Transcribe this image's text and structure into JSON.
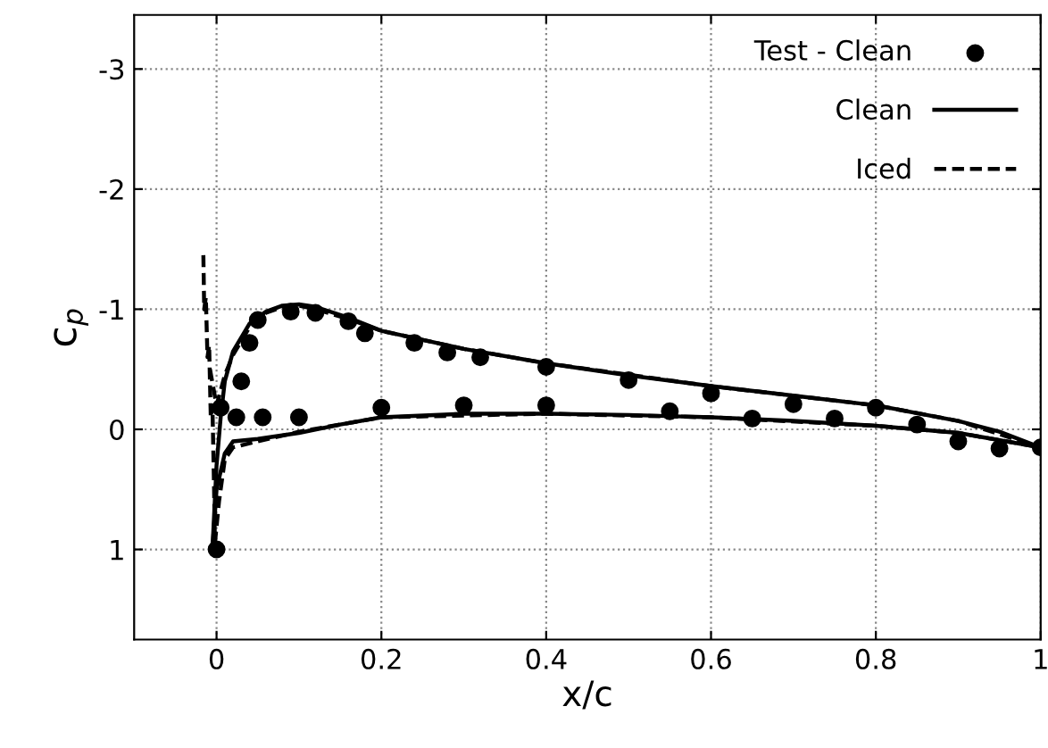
{
  "chart_data": {
    "type": "line",
    "xlabel": "x/c",
    "ylabel": "c$_{p}$",
    "xlim": [
      -0.1,
      1.0
    ],
    "ylim": [
      1.75,
      -3.45
    ],
    "xticks": [
      0,
      0.2,
      0.4,
      0.6,
      0.8,
      1
    ],
    "yticks": [
      -3,
      -2,
      -1,
      0,
      1
    ],
    "grid": true,
    "legend": "top right",
    "series": [
      {
        "name": "Test - Clean",
        "type": "scatter",
        "marker": "circle",
        "color": "#000000",
        "x": [
          0,
          0.005,
          0.024,
          0.056,
          0.1,
          0.2,
          0.3,
          0.4,
          0.55,
          0.65,
          0.75,
          0.03,
          0.04,
          0.05,
          0.09,
          0.12,
          0.16,
          0.18,
          0.24,
          0.28,
          0.32,
          0.4,
          0.5,
          0.6,
          0.7,
          0.8,
          0.85,
          0.9,
          0.95,
          1.0
        ],
        "values": [
          1,
          -0.18,
          -0.1,
          -0.1,
          -0.1,
          -0.18,
          -0.2,
          -0.2,
          -0.15,
          -0.09,
          -0.09,
          -0.4,
          -0.72,
          -0.91,
          -0.98,
          -0.97,
          -0.9,
          -0.8,
          -0.72,
          -0.64,
          -0.6,
          -0.52,
          -0.41,
          -0.3,
          -0.21,
          -0.18,
          -0.04,
          0.1,
          0.16,
          0.15
        ]
      },
      {
        "name": "Clean",
        "line_style": "solid",
        "color": "#000000",
        "x": [
          -0.005,
          0.0,
          0.005,
          0.01,
          0.02,
          0.04,
          0.06,
          0.08,
          0.1,
          0.12,
          0.16,
          0.2,
          0.3,
          0.4,
          0.5,
          0.6,
          0.7,
          0.8,
          0.9,
          0.95,
          1.0
        ],
        "values": [
          1.0,
          0.3,
          -0.1,
          -0.4,
          -0.65,
          -0.88,
          -0.98,
          -1.03,
          -1.04,
          -1.02,
          -0.93,
          -0.82,
          -0.67,
          -0.55,
          -0.45,
          -0.36,
          -0.28,
          -0.2,
          -0.07,
          0.02,
          0.15
        ]
      },
      {
        "line_style": "solid",
        "color": "#000000",
        "x": [
          -0.005,
          0.0,
          0.01,
          0.02,
          0.05,
          0.1,
          0.15,
          0.2,
          0.3,
          0.4,
          0.5,
          0.6,
          0.7,
          0.8,
          0.9,
          1.0
        ],
        "values": [
          1.0,
          0.5,
          0.2,
          0.1,
          0.08,
          0.03,
          -0.04,
          -0.1,
          -0.13,
          -0.13,
          -0.12,
          -0.1,
          -0.07,
          -0.03,
          0.03,
          0.15
        ]
      },
      {
        "name": "Iced",
        "line_style": "dashed",
        "color": "#000000",
        "x": [
          -0.008,
          0.0,
          0.01,
          0.02,
          0.04,
          0.06,
          0.08,
          0.1,
          0.12,
          0.16,
          0.2,
          0.3,
          0.4,
          0.6,
          0.8,
          0.9,
          1.0
        ],
        "values": [
          -0.5,
          -0.2,
          -0.45,
          -0.62,
          -0.85,
          -0.97,
          -1.02,
          -1.03,
          -1.0,
          -0.92,
          -0.82,
          -0.67,
          -0.55,
          -0.36,
          -0.2,
          -0.07,
          0.15
        ]
      },
      {
        "line_style": "dashed",
        "color": "#000000",
        "x": [
          -0.002,
          0.003,
          0.01,
          0.02,
          0.05,
          0.1,
          0.2,
          0.4,
          0.6,
          0.8,
          0.9,
          1.0
        ],
        "values": [
          0.95,
          0.6,
          0.25,
          0.15,
          0.1,
          0.02,
          -0.1,
          -0.13,
          -0.1,
          -0.03,
          0.03,
          0.15
        ]
      },
      {
        "line_style": "dashed",
        "color": "#000000",
        "x": [
          -0.016,
          -0.015,
          -0.013,
          -0.011,
          -0.009,
          -0.007,
          -0.005,
          -0.003,
          -0.002
        ],
        "values": [
          -1.45,
          -1.0,
          -1.1,
          -0.6,
          -0.7,
          -0.1,
          -0.2,
          0.5,
          0.95
        ]
      }
    ]
  }
}
